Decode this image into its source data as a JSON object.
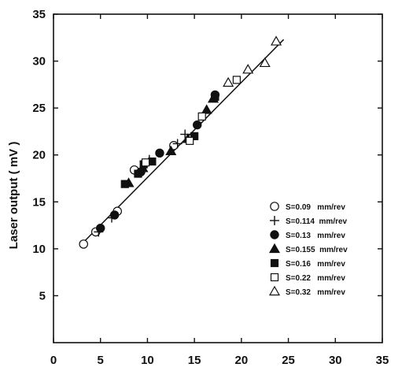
{
  "chart_data": {
    "type": "scatter",
    "title": "",
    "xlabel": "",
    "ylabel": "Laser output  ( mV )",
    "xlim": [
      0,
      35
    ],
    "ylim": [
      0,
      35
    ],
    "x_ticks": [
      "0",
      "5",
      "10",
      "15",
      "20",
      "25",
      "30",
      "35"
    ],
    "y_ticks": [
      "5",
      "10",
      "15",
      "20",
      "25",
      "30",
      "35"
    ],
    "grid": false,
    "legend_position": "lower-right",
    "fit_line": {
      "x": [
        3,
        24.5
      ],
      "y": [
        10.5,
        32.3
      ]
    },
    "series": [
      {
        "name": "S=0.09   mm/rev",
        "marker": "circle-open",
        "points": [
          [
            3.2,
            10.5
          ],
          [
            4.5,
            11.8
          ],
          [
            6.8,
            14.0
          ],
          [
            8.6,
            18.4
          ],
          [
            12.8,
            21.0
          ]
        ]
      },
      {
        "name": "S=0.114  mm/rev",
        "marker": "plus",
        "points": [
          [
            4.8,
            11.8
          ],
          [
            6.2,
            13.3
          ],
          [
            10.2,
            19.5
          ],
          [
            13.2,
            21.2
          ],
          [
            14.0,
            22.2
          ]
        ]
      },
      {
        "name": "S=0.13   mm/rev",
        "marker": "circle-filled",
        "points": [
          [
            5.0,
            12.2
          ],
          [
            6.5,
            13.6
          ],
          [
            9.3,
            18.2
          ],
          [
            11.3,
            20.2
          ],
          [
            15.3,
            23.2
          ],
          [
            17.2,
            26.4
          ]
        ]
      },
      {
        "name": "S=0.155  mm/rev",
        "marker": "triangle-filled",
        "points": [
          [
            8.0,
            17.0
          ],
          [
            9.5,
            18.6
          ],
          [
            12.5,
            20.4
          ],
          [
            14.3,
            21.7
          ],
          [
            16.3,
            24.8
          ],
          [
            17.0,
            26.0
          ]
        ]
      },
      {
        "name": "S=0.16   mm/rev",
        "marker": "square-filled",
        "points": [
          [
            7.6,
            16.9
          ],
          [
            9.0,
            18.0
          ],
          [
            9.6,
            19.0
          ],
          [
            10.5,
            19.3
          ],
          [
            15.0,
            22.0
          ],
          [
            17.2,
            26.2
          ]
        ]
      },
      {
        "name": "S=0.22   mm/rev",
        "marker": "square-open",
        "points": [
          [
            9.8,
            19.2
          ],
          [
            14.5,
            21.5
          ],
          [
            15.8,
            24.1
          ],
          [
            19.5,
            28.0
          ]
        ]
      },
      {
        "name": "S=0.32   mm/rev",
        "marker": "triangle-open",
        "points": [
          [
            18.6,
            27.7
          ],
          [
            20.7,
            29.1
          ],
          [
            22.5,
            29.8
          ],
          [
            23.7,
            32.1
          ]
        ]
      }
    ]
  }
}
